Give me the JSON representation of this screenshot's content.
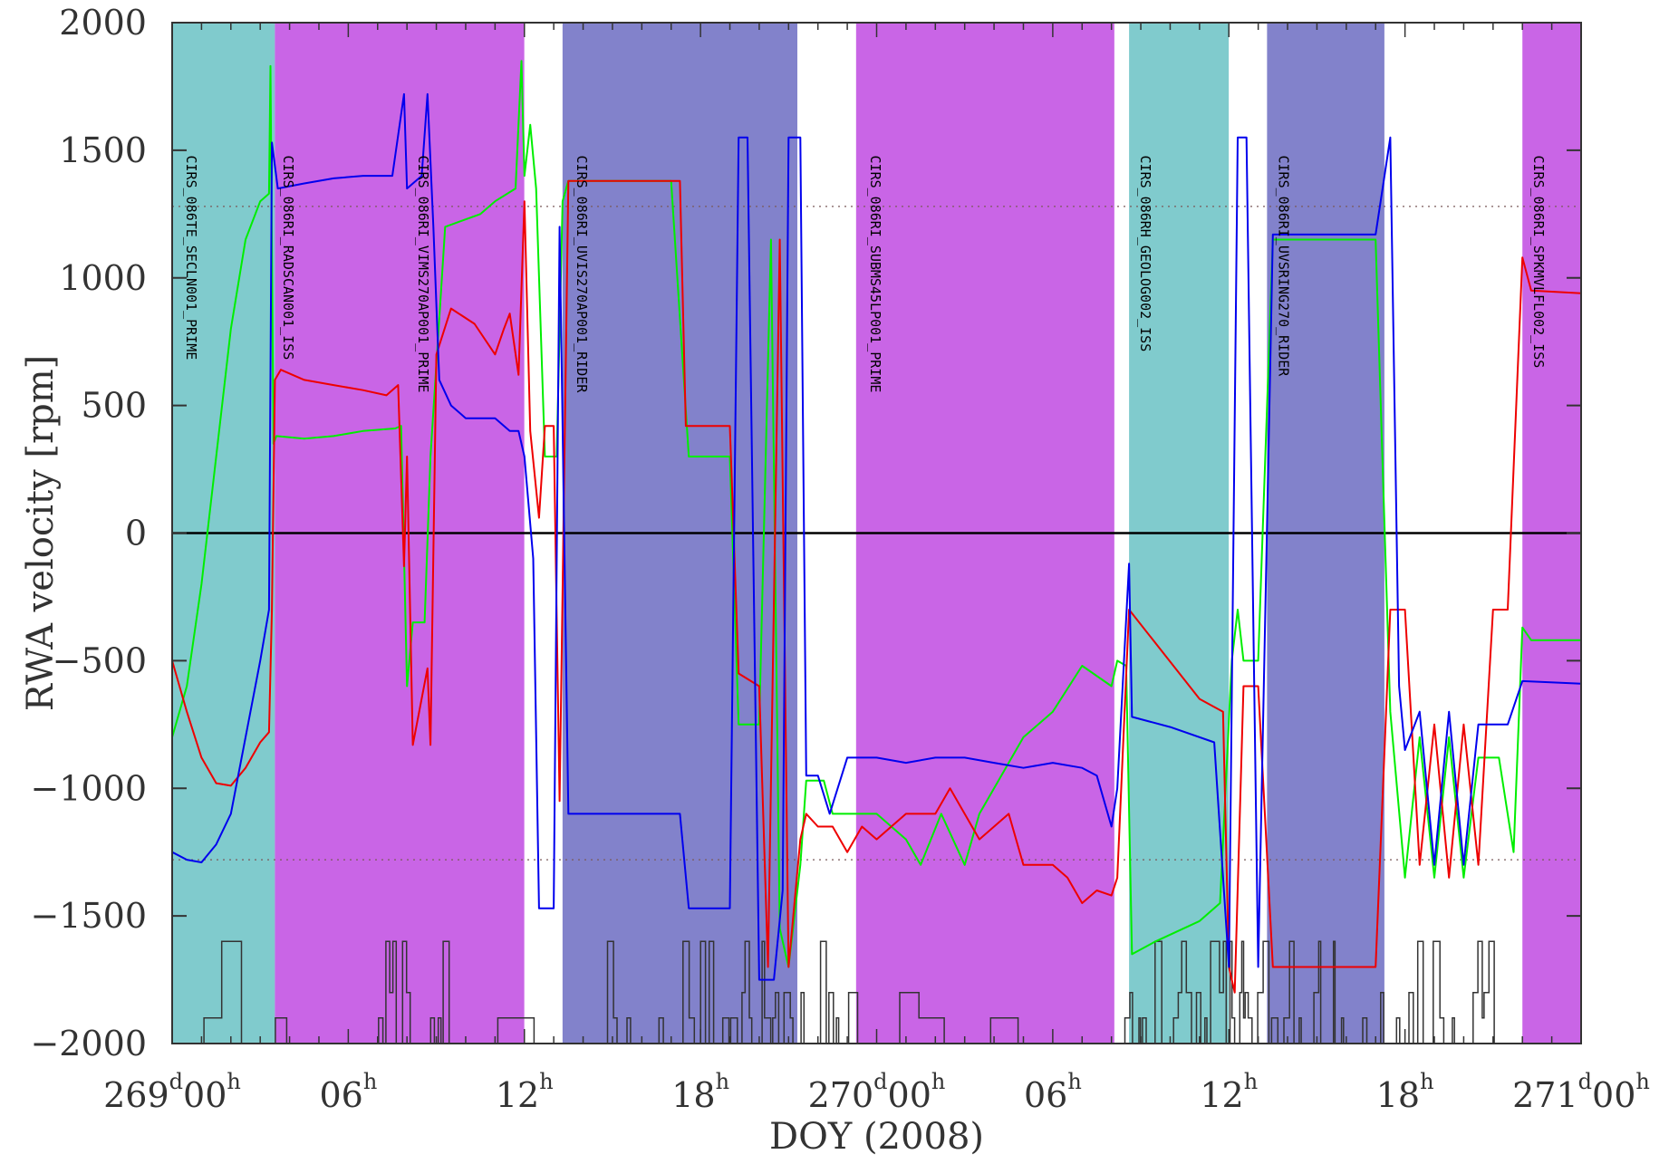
{
  "chart_data": {
    "type": "line",
    "title": "",
    "xlabel": "DOY (2008)",
    "ylabel": "RWA velocity [rpm]",
    "x_unit": "hours since 269d00h",
    "xlim": [
      0,
      48
    ],
    "ylim": [
      -2000,
      2000
    ],
    "yticks": [
      {
        "value": -2000,
        "label": "−2000"
      },
      {
        "value": -1500,
        "label": "−1500"
      },
      {
        "value": -1000,
        "label": "−1000"
      },
      {
        "value": -500,
        "label": "−500"
      },
      {
        "value": 0,
        "label": "0"
      },
      {
        "value": 500,
        "label": "500"
      },
      {
        "value": 1000,
        "label": "1000"
      },
      {
        "value": 1500,
        "label": "1500"
      },
      {
        "value": 2000,
        "label": "2000"
      }
    ],
    "xticks": [
      {
        "value": 0,
        "day": "269",
        "hour": "00"
      },
      {
        "value": 6,
        "day": "",
        "hour": "06"
      },
      {
        "value": 12,
        "day": "",
        "hour": "12"
      },
      {
        "value": 18,
        "day": "",
        "hour": "18"
      },
      {
        "value": 24,
        "day": "270",
        "hour": "00"
      },
      {
        "value": 30,
        "day": "",
        "hour": "06"
      },
      {
        "value": 36,
        "day": "",
        "hour": "12"
      },
      {
        "value": 42,
        "day": "",
        "hour": "18"
      },
      {
        "value": 48,
        "day": "271",
        "hour": "00"
      }
    ],
    "tick_units": {
      "day": "d",
      "hour": "h"
    },
    "reference_lines": [
      {
        "y": 1280,
        "style": "dotted"
      },
      {
        "y": -1280,
        "style": "dotted"
      },
      {
        "y": 0,
        "style": "solid"
      }
    ],
    "observation_bands": [
      {
        "start": 0.0,
        "end": 3.5,
        "color": "#80cbcd",
        "label": "CIRS_086TE_SECLN001_PRIME"
      },
      {
        "start": 3.5,
        "end": 12.0,
        "color": "#c965e6",
        "label": "CIRS_086RI_RADSCAN001_ISS"
      },
      {
        "start": 12.0,
        "end": 13.3,
        "color": "#ffffff",
        "label": ""
      },
      {
        "start": 13.3,
        "end": 21.3,
        "color": "#8282cb",
        "label": "CIRS_086RI_VIMS270AP001_PRIME"
      },
      {
        "start": 21.3,
        "end": 23.3,
        "color": "#ffffff",
        "label": ""
      },
      {
        "start": 23.3,
        "end": 32.1,
        "color": "#c965e6",
        "label": "CIRS_086RI_SUBMS45LP001_PRIME"
      },
      {
        "start": 32.1,
        "end": 32.6,
        "color": "#ffffff",
        "label": ""
      },
      {
        "start": 32.6,
        "end": 36.0,
        "color": "#80cbcd",
        "label": "CIRS_086RH_GEOLOG002_ISS"
      },
      {
        "start": 36.0,
        "end": 37.3,
        "color": "#ffffff",
        "label": ""
      },
      {
        "start": 37.3,
        "end": 41.3,
        "color": "#8282cb",
        "label": "CIRS_086RI_UVSRING270_RIDER"
      },
      {
        "start": 41.3,
        "end": 46.0,
        "color": "#ffffff",
        "label": ""
      },
      {
        "start": 46.0,
        "end": 48.0,
        "color": "#c965e6",
        "label": "CIRS_086RI_SPKMVLFL002_ISS"
      }
    ],
    "observation_labels": [
      {
        "x": 0.5,
        "text": "CIRS_086TE_SECLN001_PRIME"
      },
      {
        "x": 3.8,
        "text": "CIRS_086RI_RADSCAN001_ISS"
      },
      {
        "x": 8.4,
        "text": "CIRS_086RI_VIMS270AP001_PRIME"
      },
      {
        "x": 13.8,
        "text": "CIRS_086RI_UVIS270AP001_RIDER"
      },
      {
        "x": 23.8,
        "text": "CIRS_086RI_SUBMS45LP001_PRIME"
      },
      {
        "x": 33.0,
        "text": "CIRS_086RH_GEOLOG002_ISS"
      },
      {
        "x": 37.7,
        "text": "CIRS_086RI_UVSRING270_RIDER"
      },
      {
        "x": 46.4,
        "text": "CIRS_086RI_SPKMVLFL002_ISS"
      }
    ],
    "series": [
      {
        "color": "#00ee00",
        "points": [
          [
            0,
            -800
          ],
          [
            0.5,
            -600
          ],
          [
            1.0,
            -200
          ],
          [
            1.5,
            300
          ],
          [
            2.0,
            800
          ],
          [
            2.5,
            1150
          ],
          [
            3.0,
            1300
          ],
          [
            3.3,
            1330
          ],
          [
            3.35,
            1830
          ],
          [
            3.45,
            350
          ],
          [
            3.55,
            380
          ],
          [
            4.5,
            370
          ],
          [
            5.5,
            380
          ],
          [
            6.5,
            400
          ],
          [
            7.6,
            410
          ],
          [
            7.8,
            420
          ],
          [
            8.0,
            -600
          ],
          [
            8.2,
            -350
          ],
          [
            8.6,
            -350
          ],
          [
            8.8,
            300
          ],
          [
            9.3,
            1200
          ],
          [
            10.5,
            1250
          ],
          [
            11.0,
            1300
          ],
          [
            11.7,
            1350
          ],
          [
            11.9,
            1850
          ],
          [
            12.0,
            1400
          ],
          [
            12.2,
            1600
          ],
          [
            12.4,
            1350
          ],
          [
            12.7,
            300
          ],
          [
            13.1,
            300
          ],
          [
            13.3,
            1300
          ],
          [
            13.5,
            1380
          ],
          [
            17.0,
            1380
          ],
          [
            17.6,
            300
          ],
          [
            19.0,
            300
          ],
          [
            19.3,
            -750
          ],
          [
            20.0,
            -750
          ],
          [
            20.4,
            1150
          ],
          [
            20.7,
            -1550
          ],
          [
            21.0,
            -1700
          ],
          [
            21.4,
            -1300
          ],
          [
            21.6,
            -970
          ],
          [
            22.2,
            -970
          ],
          [
            22.5,
            -1100
          ],
          [
            23.0,
            -1100
          ],
          [
            24.0,
            -1100
          ],
          [
            25.0,
            -1200
          ],
          [
            25.5,
            -1300
          ],
          [
            26.2,
            -1100
          ],
          [
            27.0,
            -1300
          ],
          [
            27.5,
            -1100
          ],
          [
            28.0,
            -1000
          ],
          [
            29.0,
            -800
          ],
          [
            30.0,
            -700
          ],
          [
            31.0,
            -520
          ],
          [
            32.0,
            -600
          ],
          [
            32.2,
            -500
          ],
          [
            32.5,
            -520
          ],
          [
            32.7,
            -1650
          ],
          [
            33.5,
            -1600
          ],
          [
            35.0,
            -1520
          ],
          [
            35.7,
            -1450
          ],
          [
            36.1,
            -500
          ],
          [
            36.3,
            -300
          ],
          [
            36.5,
            -500
          ],
          [
            37.0,
            -500
          ],
          [
            37.5,
            1150
          ],
          [
            41.0,
            1150
          ],
          [
            41.5,
            -700
          ],
          [
            42.0,
            -1350
          ],
          [
            42.5,
            -800
          ],
          [
            43.0,
            -1350
          ],
          [
            43.5,
            -800
          ],
          [
            44.0,
            -1350
          ],
          [
            44.5,
            -880
          ],
          [
            45.2,
            -880
          ],
          [
            45.7,
            -1250
          ],
          [
            46.0,
            -370
          ],
          [
            46.3,
            -420
          ],
          [
            48.0,
            -420
          ]
        ]
      },
      {
        "color": "#ee0000",
        "points": [
          [
            0,
            -500
          ],
          [
            0.5,
            -700
          ],
          [
            1.0,
            -880
          ],
          [
            1.5,
            -980
          ],
          [
            2.0,
            -990
          ],
          [
            2.5,
            -920
          ],
          [
            3.0,
            -820
          ],
          [
            3.3,
            -780
          ],
          [
            3.4,
            -300
          ],
          [
            3.5,
            600
          ],
          [
            3.7,
            640
          ],
          [
            4.5,
            600
          ],
          [
            5.5,
            580
          ],
          [
            6.5,
            560
          ],
          [
            7.3,
            540
          ],
          [
            7.7,
            580
          ],
          [
            7.9,
            -130
          ],
          [
            8.0,
            300
          ],
          [
            8.2,
            -830
          ],
          [
            8.7,
            -530
          ],
          [
            8.8,
            -830
          ],
          [
            9.0,
            700
          ],
          [
            9.5,
            880
          ],
          [
            10.3,
            820
          ],
          [
            11.0,
            700
          ],
          [
            11.3,
            800
          ],
          [
            11.5,
            860
          ],
          [
            11.8,
            620
          ],
          [
            12.0,
            1300
          ],
          [
            12.2,
            400
          ],
          [
            12.5,
            60
          ],
          [
            12.7,
            420
          ],
          [
            13.0,
            420
          ],
          [
            13.2,
            -1050
          ],
          [
            13.5,
            1380
          ],
          [
            17.3,
            1380
          ],
          [
            17.5,
            420
          ],
          [
            19.0,
            420
          ],
          [
            19.3,
            -550
          ],
          [
            20.0,
            -600
          ],
          [
            20.3,
            -1700
          ],
          [
            20.7,
            1150
          ],
          [
            21.0,
            -1700
          ],
          [
            21.4,
            -1200
          ],
          [
            21.6,
            -1100
          ],
          [
            22.0,
            -1150
          ],
          [
            22.5,
            -1150
          ],
          [
            23.0,
            -1250
          ],
          [
            23.5,
            -1150
          ],
          [
            24.0,
            -1200
          ],
          [
            25.0,
            -1100
          ],
          [
            26.0,
            -1100
          ],
          [
            26.5,
            -1000
          ],
          [
            27.5,
            -1200
          ],
          [
            28.5,
            -1100
          ],
          [
            29.0,
            -1300
          ],
          [
            30.0,
            -1300
          ],
          [
            30.5,
            -1350
          ],
          [
            31.0,
            -1450
          ],
          [
            31.5,
            -1400
          ],
          [
            32.0,
            -1420
          ],
          [
            32.2,
            -1350
          ],
          [
            32.6,
            -300
          ],
          [
            35.0,
            -650
          ],
          [
            35.8,
            -700
          ],
          [
            36.0,
            -1700
          ],
          [
            36.2,
            -1800
          ],
          [
            36.5,
            -600
          ],
          [
            37.0,
            -600
          ],
          [
            37.5,
            -1700
          ],
          [
            41.0,
            -1700
          ],
          [
            41.5,
            -300
          ],
          [
            42.0,
            -300
          ],
          [
            42.5,
            -1300
          ],
          [
            43.0,
            -750
          ],
          [
            43.5,
            -1350
          ],
          [
            44.0,
            -750
          ],
          [
            44.5,
            -1300
          ],
          [
            45.0,
            -300
          ],
          [
            45.5,
            -300
          ],
          [
            46.0,
            1080
          ],
          [
            46.3,
            950
          ],
          [
            48.0,
            940
          ]
        ]
      },
      {
        "color": "#0000ee",
        "points": [
          [
            0,
            -1250
          ],
          [
            0.5,
            -1280
          ],
          [
            1.0,
            -1290
          ],
          [
            1.5,
            -1220
          ],
          [
            2.0,
            -1100
          ],
          [
            2.5,
            -800
          ],
          [
            3.0,
            -500
          ],
          [
            3.3,
            -300
          ],
          [
            3.4,
            1530
          ],
          [
            3.6,
            1350
          ],
          [
            4.5,
            1370
          ],
          [
            5.5,
            1390
          ],
          [
            6.5,
            1400
          ],
          [
            7.5,
            1400
          ],
          [
            7.9,
            1720
          ],
          [
            8.0,
            1350
          ],
          [
            8.5,
            1400
          ],
          [
            8.7,
            1720
          ],
          [
            8.9,
            1200
          ],
          [
            9.1,
            600
          ],
          [
            9.5,
            500
          ],
          [
            10.0,
            450
          ],
          [
            11.0,
            450
          ],
          [
            11.5,
            400
          ],
          [
            11.8,
            400
          ],
          [
            12.0,
            300
          ],
          [
            12.3,
            -100
          ],
          [
            12.5,
            -1470
          ],
          [
            13.0,
            -1470
          ],
          [
            13.2,
            1200
          ],
          [
            13.5,
            -1100
          ],
          [
            17.3,
            -1100
          ],
          [
            17.6,
            -1470
          ],
          [
            19.0,
            -1470
          ],
          [
            19.3,
            1550
          ],
          [
            19.6,
            1550
          ],
          [
            20.0,
            -1750
          ],
          [
            20.5,
            -1750
          ],
          [
            20.8,
            -1400
          ],
          [
            21.0,
            1550
          ],
          [
            21.4,
            1550
          ],
          [
            21.6,
            -950
          ],
          [
            22.0,
            -950
          ],
          [
            22.4,
            -1100
          ],
          [
            23.0,
            -880
          ],
          [
            24.0,
            -880
          ],
          [
            25.0,
            -900
          ],
          [
            26.0,
            -880
          ],
          [
            27.0,
            -880
          ],
          [
            28.0,
            -900
          ],
          [
            29.0,
            -920
          ],
          [
            30.0,
            -900
          ],
          [
            31.0,
            -920
          ],
          [
            31.5,
            -950
          ],
          [
            32.0,
            -1150
          ],
          [
            32.2,
            -1000
          ],
          [
            32.6,
            -120
          ],
          [
            32.7,
            -720
          ],
          [
            34.0,
            -760
          ],
          [
            35.5,
            -820
          ],
          [
            36.0,
            -1700
          ],
          [
            36.3,
            1550
          ],
          [
            36.6,
            1550
          ],
          [
            37.0,
            -1700
          ],
          [
            37.5,
            1170
          ],
          [
            41.0,
            1170
          ],
          [
            41.5,
            1550
          ],
          [
            41.8,
            -600
          ],
          [
            42.0,
            -850
          ],
          [
            42.5,
            -700
          ],
          [
            43.0,
            -1300
          ],
          [
            43.5,
            -700
          ],
          [
            44.0,
            -1300
          ],
          [
            44.5,
            -750
          ],
          [
            45.5,
            -750
          ],
          [
            46.0,
            -580
          ],
          [
            48.0,
            -590
          ]
        ]
      }
    ],
    "activity_trace": {
      "color": "#333333",
      "baseline": -2000
    },
    "grid": false,
    "legend": "none"
  }
}
